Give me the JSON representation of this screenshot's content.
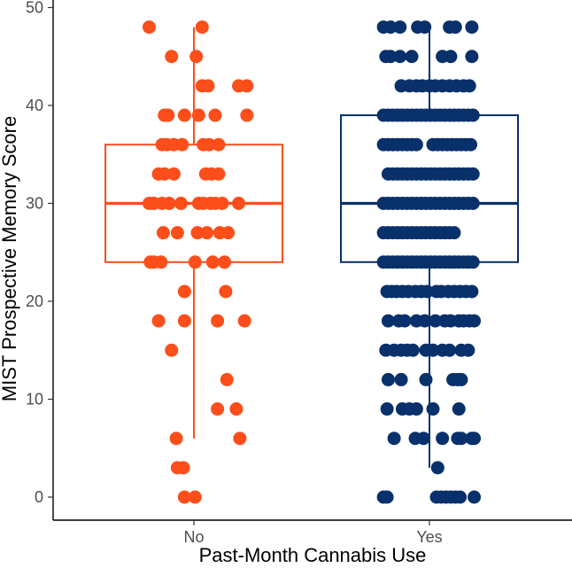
{
  "chart_data": {
    "type": "box-jitter",
    "xlabel": "Past-Month Cannabis Use",
    "ylabel": "MIST Prospective Memory Score",
    "ylim": [
      0,
      50
    ],
    "yticks": [
      0,
      10,
      20,
      30,
      40,
      50
    ],
    "categories": [
      "No",
      "Yes"
    ],
    "grid": false,
    "legend": "none",
    "groups": [
      {
        "category": "No",
        "color": "#FC4E1A",
        "box": {
          "min": 6,
          "q1": 24,
          "median": 30,
          "q3": 36,
          "max": 48
        },
        "points": [
          [
            -0.38,
            48
          ],
          [
            0.07,
            48
          ],
          [
            -0.19,
            45
          ],
          [
            0.02,
            45
          ],
          [
            0.07,
            42
          ],
          [
            0.12,
            42
          ],
          [
            0.38,
            42
          ],
          [
            0.45,
            42
          ],
          [
            -0.25,
            39
          ],
          [
            -0.22,
            39
          ],
          [
            -0.08,
            39
          ],
          [
            0.04,
            39
          ],
          [
            0.18,
            39
          ],
          [
            0.45,
            39
          ],
          [
            -0.27,
            36
          ],
          [
            -0.23,
            36
          ],
          [
            -0.17,
            36
          ],
          [
            -0.1,
            36
          ],
          [
            0.08,
            36
          ],
          [
            0.13,
            36
          ],
          [
            0.21,
            36
          ],
          [
            -0.3,
            33
          ],
          [
            -0.25,
            33
          ],
          [
            -0.17,
            33
          ],
          [
            0.1,
            33
          ],
          [
            0.15,
            33
          ],
          [
            0.21,
            33
          ],
          [
            -0.38,
            30
          ],
          [
            -0.34,
            30
          ],
          [
            -0.27,
            30
          ],
          [
            -0.21,
            30
          ],
          [
            -0.11,
            30
          ],
          [
            0.04,
            30
          ],
          [
            0.08,
            30
          ],
          [
            0.14,
            30
          ],
          [
            0.18,
            30
          ],
          [
            0.24,
            30
          ],
          [
            0.38,
            30
          ],
          [
            -0.26,
            27
          ],
          [
            -0.14,
            27
          ],
          [
            0.03,
            27
          ],
          [
            0.11,
            27
          ],
          [
            0.22,
            27
          ],
          [
            0.29,
            27
          ],
          [
            -0.37,
            24
          ],
          [
            -0.34,
            24
          ],
          [
            -0.28,
            24
          ],
          [
            0.01,
            24
          ],
          [
            0.16,
            24
          ],
          [
            0.26,
            24
          ],
          [
            -0.08,
            21
          ],
          [
            0.27,
            21
          ],
          [
            -0.3,
            18
          ],
          [
            -0.08,
            18
          ],
          [
            0.2,
            18
          ],
          [
            0.43,
            18
          ],
          [
            -0.19,
            15
          ],
          [
            0.28,
            12
          ],
          [
            0.2,
            9
          ],
          [
            0.36,
            9
          ],
          [
            -0.15,
            6
          ],
          [
            0.39,
            6
          ],
          [
            -0.14,
            3
          ],
          [
            -0.09,
            3
          ],
          [
            -0.08,
            0
          ],
          [
            0.01,
            0
          ]
        ]
      },
      {
        "category": "Yes",
        "color": "#08306B",
        "box": {
          "min": 3,
          "q1": 24,
          "median": 30,
          "q3": 39,
          "max": 48
        },
        "points": [
          [
            -0.39,
            48
          ],
          [
            -0.33,
            48
          ],
          [
            -0.25,
            48
          ],
          [
            -0.1,
            48
          ],
          [
            -0.04,
            48
          ],
          [
            0.17,
            48
          ],
          [
            0.22,
            48
          ],
          [
            0.36,
            48
          ],
          [
            -0.37,
            45
          ],
          [
            -0.33,
            45
          ],
          [
            -0.25,
            45
          ],
          [
            -0.15,
            45
          ],
          [
            0.11,
            45
          ],
          [
            0.18,
            45
          ],
          [
            0.36,
            45
          ],
          [
            -0.24,
            42
          ],
          [
            -0.17,
            42
          ],
          [
            -0.11,
            42
          ],
          [
            -0.06,
            42
          ],
          [
            0.0,
            42
          ],
          [
            0.05,
            42
          ],
          [
            0.11,
            42
          ],
          [
            0.17,
            42
          ],
          [
            0.23,
            42
          ],
          [
            0.29,
            42
          ],
          [
            0.34,
            42
          ],
          [
            -0.39,
            39
          ],
          [
            -0.35,
            39
          ],
          [
            -0.31,
            39
          ],
          [
            -0.27,
            39
          ],
          [
            -0.23,
            39
          ],
          [
            -0.19,
            39
          ],
          [
            -0.15,
            39
          ],
          [
            -0.11,
            39
          ],
          [
            -0.07,
            39
          ],
          [
            -0.03,
            39
          ],
          [
            0.01,
            39
          ],
          [
            0.05,
            39
          ],
          [
            0.09,
            39
          ],
          [
            0.13,
            39
          ],
          [
            0.17,
            39
          ],
          [
            0.21,
            39
          ],
          [
            0.25,
            39
          ],
          [
            0.29,
            39
          ],
          [
            0.33,
            39
          ],
          [
            0.37,
            39
          ],
          [
            -0.39,
            36
          ],
          [
            -0.35,
            36
          ],
          [
            -0.31,
            36
          ],
          [
            -0.27,
            36
          ],
          [
            -0.23,
            36
          ],
          [
            -0.19,
            36
          ],
          [
            -0.15,
            36
          ],
          [
            -0.11,
            36
          ],
          [
            0.03,
            36
          ],
          [
            0.07,
            36
          ],
          [
            0.11,
            36
          ],
          [
            0.15,
            36
          ],
          [
            0.19,
            36
          ],
          [
            0.23,
            36
          ],
          [
            0.27,
            36
          ],
          [
            0.31,
            36
          ],
          [
            0.35,
            36
          ],
          [
            -0.35,
            33
          ],
          [
            -0.31,
            33
          ],
          [
            -0.27,
            33
          ],
          [
            -0.23,
            33
          ],
          [
            -0.19,
            33
          ],
          [
            -0.15,
            33
          ],
          [
            -0.11,
            33
          ],
          [
            -0.07,
            33
          ],
          [
            -0.03,
            33
          ],
          [
            0.01,
            33
          ],
          [
            0.05,
            33
          ],
          [
            0.09,
            33
          ],
          [
            0.13,
            33
          ],
          [
            0.17,
            33
          ],
          [
            0.21,
            33
          ],
          [
            0.25,
            33
          ],
          [
            0.29,
            33
          ],
          [
            0.33,
            33
          ],
          [
            0.37,
            33
          ],
          [
            -0.39,
            30
          ],
          [
            -0.35,
            30
          ],
          [
            -0.31,
            30
          ],
          [
            -0.27,
            30
          ],
          [
            -0.23,
            30
          ],
          [
            -0.19,
            30
          ],
          [
            -0.15,
            30
          ],
          [
            -0.11,
            30
          ],
          [
            -0.07,
            30
          ],
          [
            -0.03,
            30
          ],
          [
            0.01,
            30
          ],
          [
            0.05,
            30
          ],
          [
            0.09,
            30
          ],
          [
            0.13,
            30
          ],
          [
            0.17,
            30
          ],
          [
            0.21,
            30
          ],
          [
            0.25,
            30
          ],
          [
            0.29,
            30
          ],
          [
            0.33,
            30
          ],
          [
            0.37,
            30
          ],
          [
            -0.39,
            27
          ],
          [
            -0.35,
            27
          ],
          [
            -0.31,
            27
          ],
          [
            -0.27,
            27
          ],
          [
            -0.23,
            27
          ],
          [
            -0.19,
            27
          ],
          [
            -0.15,
            27
          ],
          [
            -0.11,
            27
          ],
          [
            -0.07,
            27
          ],
          [
            -0.03,
            27
          ],
          [
            0.01,
            27
          ],
          [
            0.05,
            27
          ],
          [
            0.09,
            27
          ],
          [
            0.13,
            27
          ],
          [
            0.17,
            27
          ],
          [
            0.21,
            27
          ],
          [
            -0.39,
            24
          ],
          [
            -0.35,
            24
          ],
          [
            -0.31,
            24
          ],
          [
            -0.27,
            24
          ],
          [
            -0.23,
            24
          ],
          [
            -0.19,
            24
          ],
          [
            -0.15,
            24
          ],
          [
            -0.11,
            24
          ],
          [
            -0.07,
            24
          ],
          [
            -0.03,
            24
          ],
          [
            0.01,
            24
          ],
          [
            0.05,
            24
          ],
          [
            0.09,
            24
          ],
          [
            0.13,
            24
          ],
          [
            0.17,
            24
          ],
          [
            0.21,
            24
          ],
          [
            0.25,
            24
          ],
          [
            0.29,
            24
          ],
          [
            0.33,
            24
          ],
          [
            0.37,
            24
          ],
          [
            -0.36,
            21
          ],
          [
            -0.32,
            21
          ],
          [
            -0.28,
            21
          ],
          [
            -0.23,
            21
          ],
          [
            -0.18,
            21
          ],
          [
            -0.12,
            21
          ],
          [
            -0.07,
            21
          ],
          [
            -0.02,
            21
          ],
          [
            0.06,
            21
          ],
          [
            0.1,
            21
          ],
          [
            0.16,
            21
          ],
          [
            0.21,
            21
          ],
          [
            0.26,
            21
          ],
          [
            0.31,
            21
          ],
          [
            0.36,
            21
          ],
          [
            -0.35,
            18
          ],
          [
            -0.26,
            18
          ],
          [
            -0.21,
            18
          ],
          [
            -0.11,
            18
          ],
          [
            -0.04,
            18
          ],
          [
            0.05,
            18
          ],
          [
            0.13,
            18
          ],
          [
            0.18,
            18
          ],
          [
            0.25,
            18
          ],
          [
            0.29,
            18
          ],
          [
            0.34,
            18
          ],
          [
            0.38,
            18
          ],
          [
            -0.37,
            15
          ],
          [
            -0.3,
            15
          ],
          [
            -0.24,
            15
          ],
          [
            -0.19,
            15
          ],
          [
            -0.14,
            15
          ],
          [
            -0.03,
            15
          ],
          [
            0.03,
            15
          ],
          [
            0.11,
            15
          ],
          [
            0.17,
            15
          ],
          [
            0.27,
            15
          ],
          [
            0.33,
            15
          ],
          [
            -0.35,
            12
          ],
          [
            -0.24,
            12
          ],
          [
            -0.03,
            12
          ],
          [
            0.2,
            12
          ],
          [
            0.24,
            12
          ],
          [
            0.27,
            12
          ],
          [
            -0.36,
            9
          ],
          [
            -0.23,
            9
          ],
          [
            -0.17,
            9
          ],
          [
            -0.11,
            9
          ],
          [
            0.03,
            9
          ],
          [
            0.25,
            9
          ],
          [
            -0.3,
            6
          ],
          [
            -0.12,
            6
          ],
          [
            -0.05,
            6
          ],
          [
            0.11,
            6
          ],
          [
            0.24,
            6
          ],
          [
            0.27,
            6
          ],
          [
            0.36,
            6
          ],
          [
            0.38,
            6
          ],
          [
            0.07,
            3
          ],
          [
            -0.39,
            0
          ],
          [
            -0.36,
            0
          ],
          [
            0.06,
            0
          ],
          [
            0.1,
            0
          ],
          [
            0.14,
            0
          ],
          [
            0.18,
            0
          ],
          [
            0.22,
            0
          ],
          [
            0.26,
            0
          ],
          [
            0.38,
            0
          ]
        ]
      }
    ]
  }
}
